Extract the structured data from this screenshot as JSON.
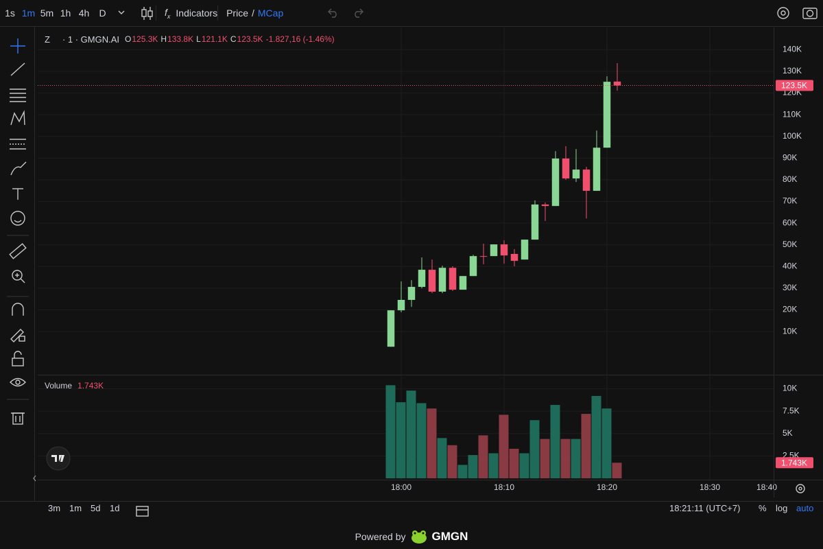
{
  "toolbar": {
    "intervals": [
      "1s",
      "1m",
      "5m",
      "1h",
      "4h",
      "D"
    ],
    "indicators": "Indicators",
    "price": "Price",
    "separator": "/",
    "mcap": "MCap"
  },
  "chart_data": {
    "type": "candlestick",
    "symbol": "Z",
    "subtitle": "· 1 · GMGN.AI",
    "legend_prefixes": [
      "O",
      "H",
      "L",
      "C"
    ],
    "legend_values": [
      "125.3K",
      "133.8K",
      "121.1K",
      "123.5K"
    ],
    "change": "-1.827,16 (-1.46%)",
    "price_tag": "123.5K",
    "volume_title": "Volume",
    "volume_tag": "1.743K",
    "x": [
      "17:59",
      "18:00",
      "18:01",
      "18:02",
      "18:03",
      "18:04",
      "18:05",
      "18:06",
      "18:07",
      "18:08",
      "18:09",
      "18:10",
      "18:11",
      "18:12",
      "18:13",
      "18:14",
      "18:15",
      "18:16",
      "18:17",
      "18:18",
      "18:19",
      "18:20",
      "18:21"
    ],
    "open": [
      3000,
      19800,
      24600,
      30600,
      38500,
      28400,
      39400,
      29300,
      35600,
      44800,
      44800,
      50200,
      45800,
      43200,
      52400,
      68600,
      67900,
      89800,
      80600,
      84700,
      74900,
      94800,
      125300
    ],
    "high": [
      19800,
      33100,
      33700,
      44200,
      43200,
      40400,
      40100,
      35600,
      45400,
      50500,
      50200,
      52100,
      48000,
      52400,
      70500,
      69500,
      93200,
      95500,
      94200,
      86000,
      102700,
      127700,
      133800
    ],
    "low": [
      3000,
      18900,
      21400,
      29900,
      27700,
      27700,
      28700,
      29300,
      35600,
      41000,
      44800,
      41300,
      40100,
      43200,
      52400,
      61000,
      67900,
      80000,
      79000,
      62200,
      74900,
      94800,
      121100
    ],
    "close": [
      19800,
      24600,
      30600,
      38500,
      28400,
      39400,
      29300,
      35600,
      44800,
      44500,
      50200,
      45100,
      42600,
      52400,
      68600,
      67900,
      89800,
      80600,
      84700,
      74900,
      94800,
      125200,
      123500
    ],
    "volume": [
      10400,
      8500,
      9800,
      8400,
      7800,
      4500,
      3700,
      1500,
      2600,
      4800,
      2800,
      7100,
      3300,
      2800,
      6500,
      4400,
      8200,
      4400,
      4400,
      7200,
      9200,
      7800,
      1743
    ],
    "up_color": "#8ad694",
    "down_color": "#f0506e",
    "volume_up_color": "#1e6b59",
    "volume_down_color": "#8a3a43",
    "xlim": [
      "17:25",
      "18:37"
    ],
    "xticks": [
      "18:00",
      "18:10",
      "18:20",
      "18:30",
      "18:40"
    ],
    "ylim": [
      -8000,
      145500
    ],
    "yticks": [
      {
        "value": 10000,
        "label": "10K"
      },
      {
        "value": 20000,
        "label": "20K"
      },
      {
        "value": 30000,
        "label": "30K"
      },
      {
        "value": 40000,
        "label": "40K"
      },
      {
        "value": 50000,
        "label": "50K"
      },
      {
        "value": 60000,
        "label": "60K"
      },
      {
        "value": 70000,
        "label": "70K"
      },
      {
        "value": 80000,
        "label": "80K"
      },
      {
        "value": 90000,
        "label": "90K"
      },
      {
        "value": 100000,
        "label": "100K"
      },
      {
        "value": 110000,
        "label": "110K"
      },
      {
        "value": 120000,
        "label": "120K"
      },
      {
        "value": 130000,
        "label": "130K"
      },
      {
        "value": 140000,
        "label": "140K"
      }
    ],
    "volume_ylim": [
      0,
      11500
    ],
    "volume_ticks": [
      {
        "value": 2500,
        "label": "2.5K"
      },
      {
        "value": 5000,
        "label": "5K"
      },
      {
        "value": 7500,
        "label": "7.5K"
      },
      {
        "value": 10000,
        "label": "10K"
      }
    ],
    "grid": true
  },
  "bottom": {
    "ranges": [
      "3m",
      "1m",
      "5d",
      "1d"
    ],
    "clock": "18:21:11 (UTC+7)",
    "percent": "%",
    "log": "log",
    "auto": "auto"
  },
  "footer": {
    "powered": "Powered by",
    "brand": "GMGN"
  }
}
